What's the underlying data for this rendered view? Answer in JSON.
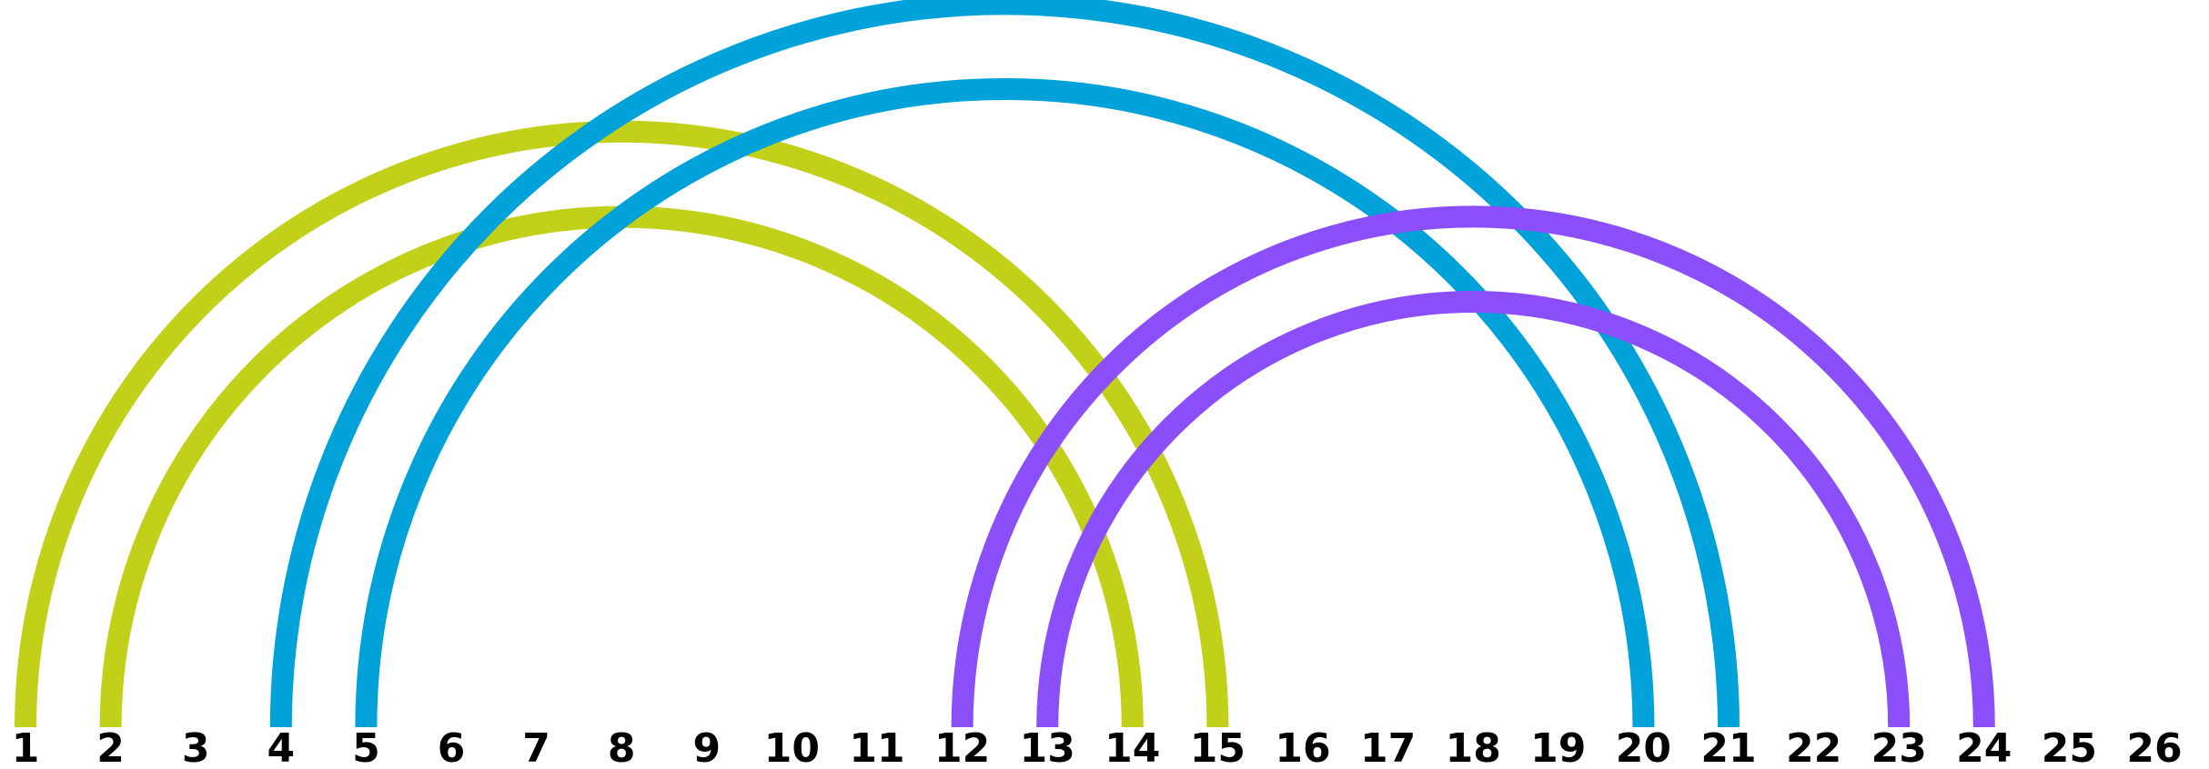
{
  "positions": [
    "1",
    "2",
    "3",
    "4",
    "5",
    "6",
    "7",
    "8",
    "9",
    "10",
    "11",
    "12",
    "13",
    "14",
    "15",
    "16",
    "17",
    "18",
    "19",
    "20",
    "21",
    "22",
    "23",
    "24",
    "25",
    "26"
  ],
  "arcs": [
    {
      "from": 1,
      "to": 15,
      "color": "#c3d019"
    },
    {
      "from": 2,
      "to": 14,
      "color": "#c3d019"
    },
    {
      "from": 4,
      "to": 21,
      "color": "#00a2d9"
    },
    {
      "from": 5,
      "to": 20,
      "color": "#00a2d9"
    },
    {
      "from": 12,
      "to": 24,
      "color": "#8a4ff9"
    },
    {
      "from": 13,
      "to": 23,
      "color": "#8a4ff9"
    }
  ]
}
